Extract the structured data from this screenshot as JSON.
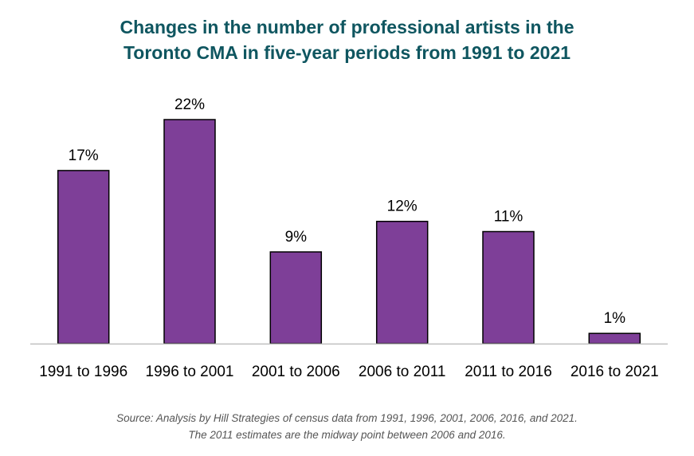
{
  "chart_data": {
    "type": "bar",
    "title_lines": [
      "Changes in the number of professional artists in the",
      "Toronto CMA in five-year periods from 1991 to 2021"
    ],
    "categories": [
      "1991 to 1996",
      "1996 to 2001",
      "2001 to 2006",
      "2006 to 2011",
      "2011 to 2016",
      "2016 to 2021"
    ],
    "values": [
      17,
      22,
      9,
      12,
      11,
      1
    ],
    "data_labels": [
      "17%",
      "22%",
      "9%",
      "12%",
      "11%",
      "1%"
    ],
    "unit": "%",
    "xlabel": "",
    "ylabel": "",
    "ylim": [
      0,
      24
    ],
    "grid": false,
    "legend": "none",
    "colors": {
      "bar_fill": "#7e3f98",
      "bar_stroke": "#000000",
      "axis": "#bfbfbf",
      "title": "#0f5660",
      "text": "#000000",
      "source": "#555555"
    }
  },
  "source_lines": [
    "Source: Analysis by Hill Strategies of census data from 1991, 1996, 2001, 2006, 2016, and 2021.",
    "The 2011 estimates are the midway point between 2006 and 2016."
  ]
}
